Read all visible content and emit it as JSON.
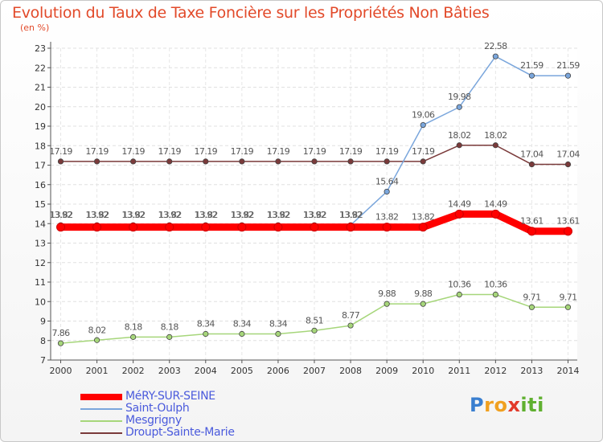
{
  "chart_data": {
    "type": "line",
    "title": "Evolution du Taux de Taxe Foncière sur les Propriétés Non Bâties",
    "ylabel": "(en %)",
    "xlabel": "",
    "x": [
      "2000",
      "2001",
      "2002",
      "2003",
      "2004",
      "2005",
      "2006",
      "2007",
      "2008",
      "2009",
      "2010",
      "2011",
      "2012",
      "2013",
      "2014"
    ],
    "ylim": [
      7,
      23
    ],
    "yticks": [
      7,
      8,
      9,
      10,
      11,
      12,
      13,
      14,
      15,
      16,
      17,
      18,
      19,
      20,
      21,
      22,
      23
    ],
    "series": [
      {
        "name": "MéRY-SUR-SEINE",
        "color": "#ff0000",
        "values": [
          13.82,
          13.82,
          13.82,
          13.82,
          13.82,
          13.82,
          13.82,
          13.82,
          13.82,
          13.82,
          13.82,
          14.49,
          14.49,
          13.61,
          13.61
        ],
        "labels": [
          "",
          "",
          "",
          "",
          "",
          "",
          "",
          "",
          "",
          "13.82",
          "13.82",
          "14.49",
          "14.49",
          "13.61",
          "13.61"
        ]
      },
      {
        "name": "Saint-Oulph",
        "color": "#7aa6dc",
        "values": [
          13.92,
          13.92,
          13.92,
          13.92,
          13.92,
          13.92,
          13.92,
          13.92,
          13.92,
          15.64,
          19.06,
          19.98,
          22.58,
          21.59,
          21.59
        ],
        "labels": [
          "13.92",
          "13.92",
          "13.92",
          "13.92",
          "13.92",
          "13.92",
          "13.92",
          "13.92",
          "13.92",
          "15.64",
          "19.06",
          "19.98",
          "22.58",
          "21.59",
          "21.59"
        ]
      },
      {
        "name": "Mesgrigny",
        "color": "#a6d67a",
        "values": [
          7.86,
          8.02,
          8.18,
          8.18,
          8.34,
          8.34,
          8.34,
          8.51,
          8.77,
          9.88,
          9.88,
          10.36,
          10.36,
          9.71,
          9.71
        ],
        "labels": [
          "7.86",
          "8.02",
          "8.18",
          "8.18",
          "8.34",
          "8.34",
          "8.34",
          "8.51",
          "8.77",
          "9.88",
          "9.88",
          "10.36",
          "10.36",
          "9.71",
          "9.71"
        ]
      },
      {
        "name": "Droupt-Sainte-Marie",
        "color": "#7a3a3a",
        "values": [
          17.19,
          17.19,
          17.19,
          17.19,
          17.19,
          17.19,
          17.19,
          17.19,
          17.19,
          17.19,
          17.19,
          18.02,
          18.02,
          17.04,
          17.04
        ],
        "labels": [
          "17.19",
          "17.19",
          "17.19",
          "17.19",
          "17.19",
          "17.19",
          "17.19",
          "17.19",
          "17.19",
          "17.19",
          "17.19",
          "18.02",
          "18.02",
          "17.04",
          "17.04"
        ]
      }
    ],
    "mery_overlap_labels": [
      "13.82",
      "13.82",
      "13.82",
      "13.82",
      "13.82",
      "13.82",
      "13.82",
      "13.82",
      "13.82"
    ],
    "legend_position": "bottom-left"
  },
  "logo": {
    "text": "Proxiti",
    "letters": [
      "P",
      "r",
      "o",
      "x",
      "i",
      "t",
      "i"
    ]
  }
}
